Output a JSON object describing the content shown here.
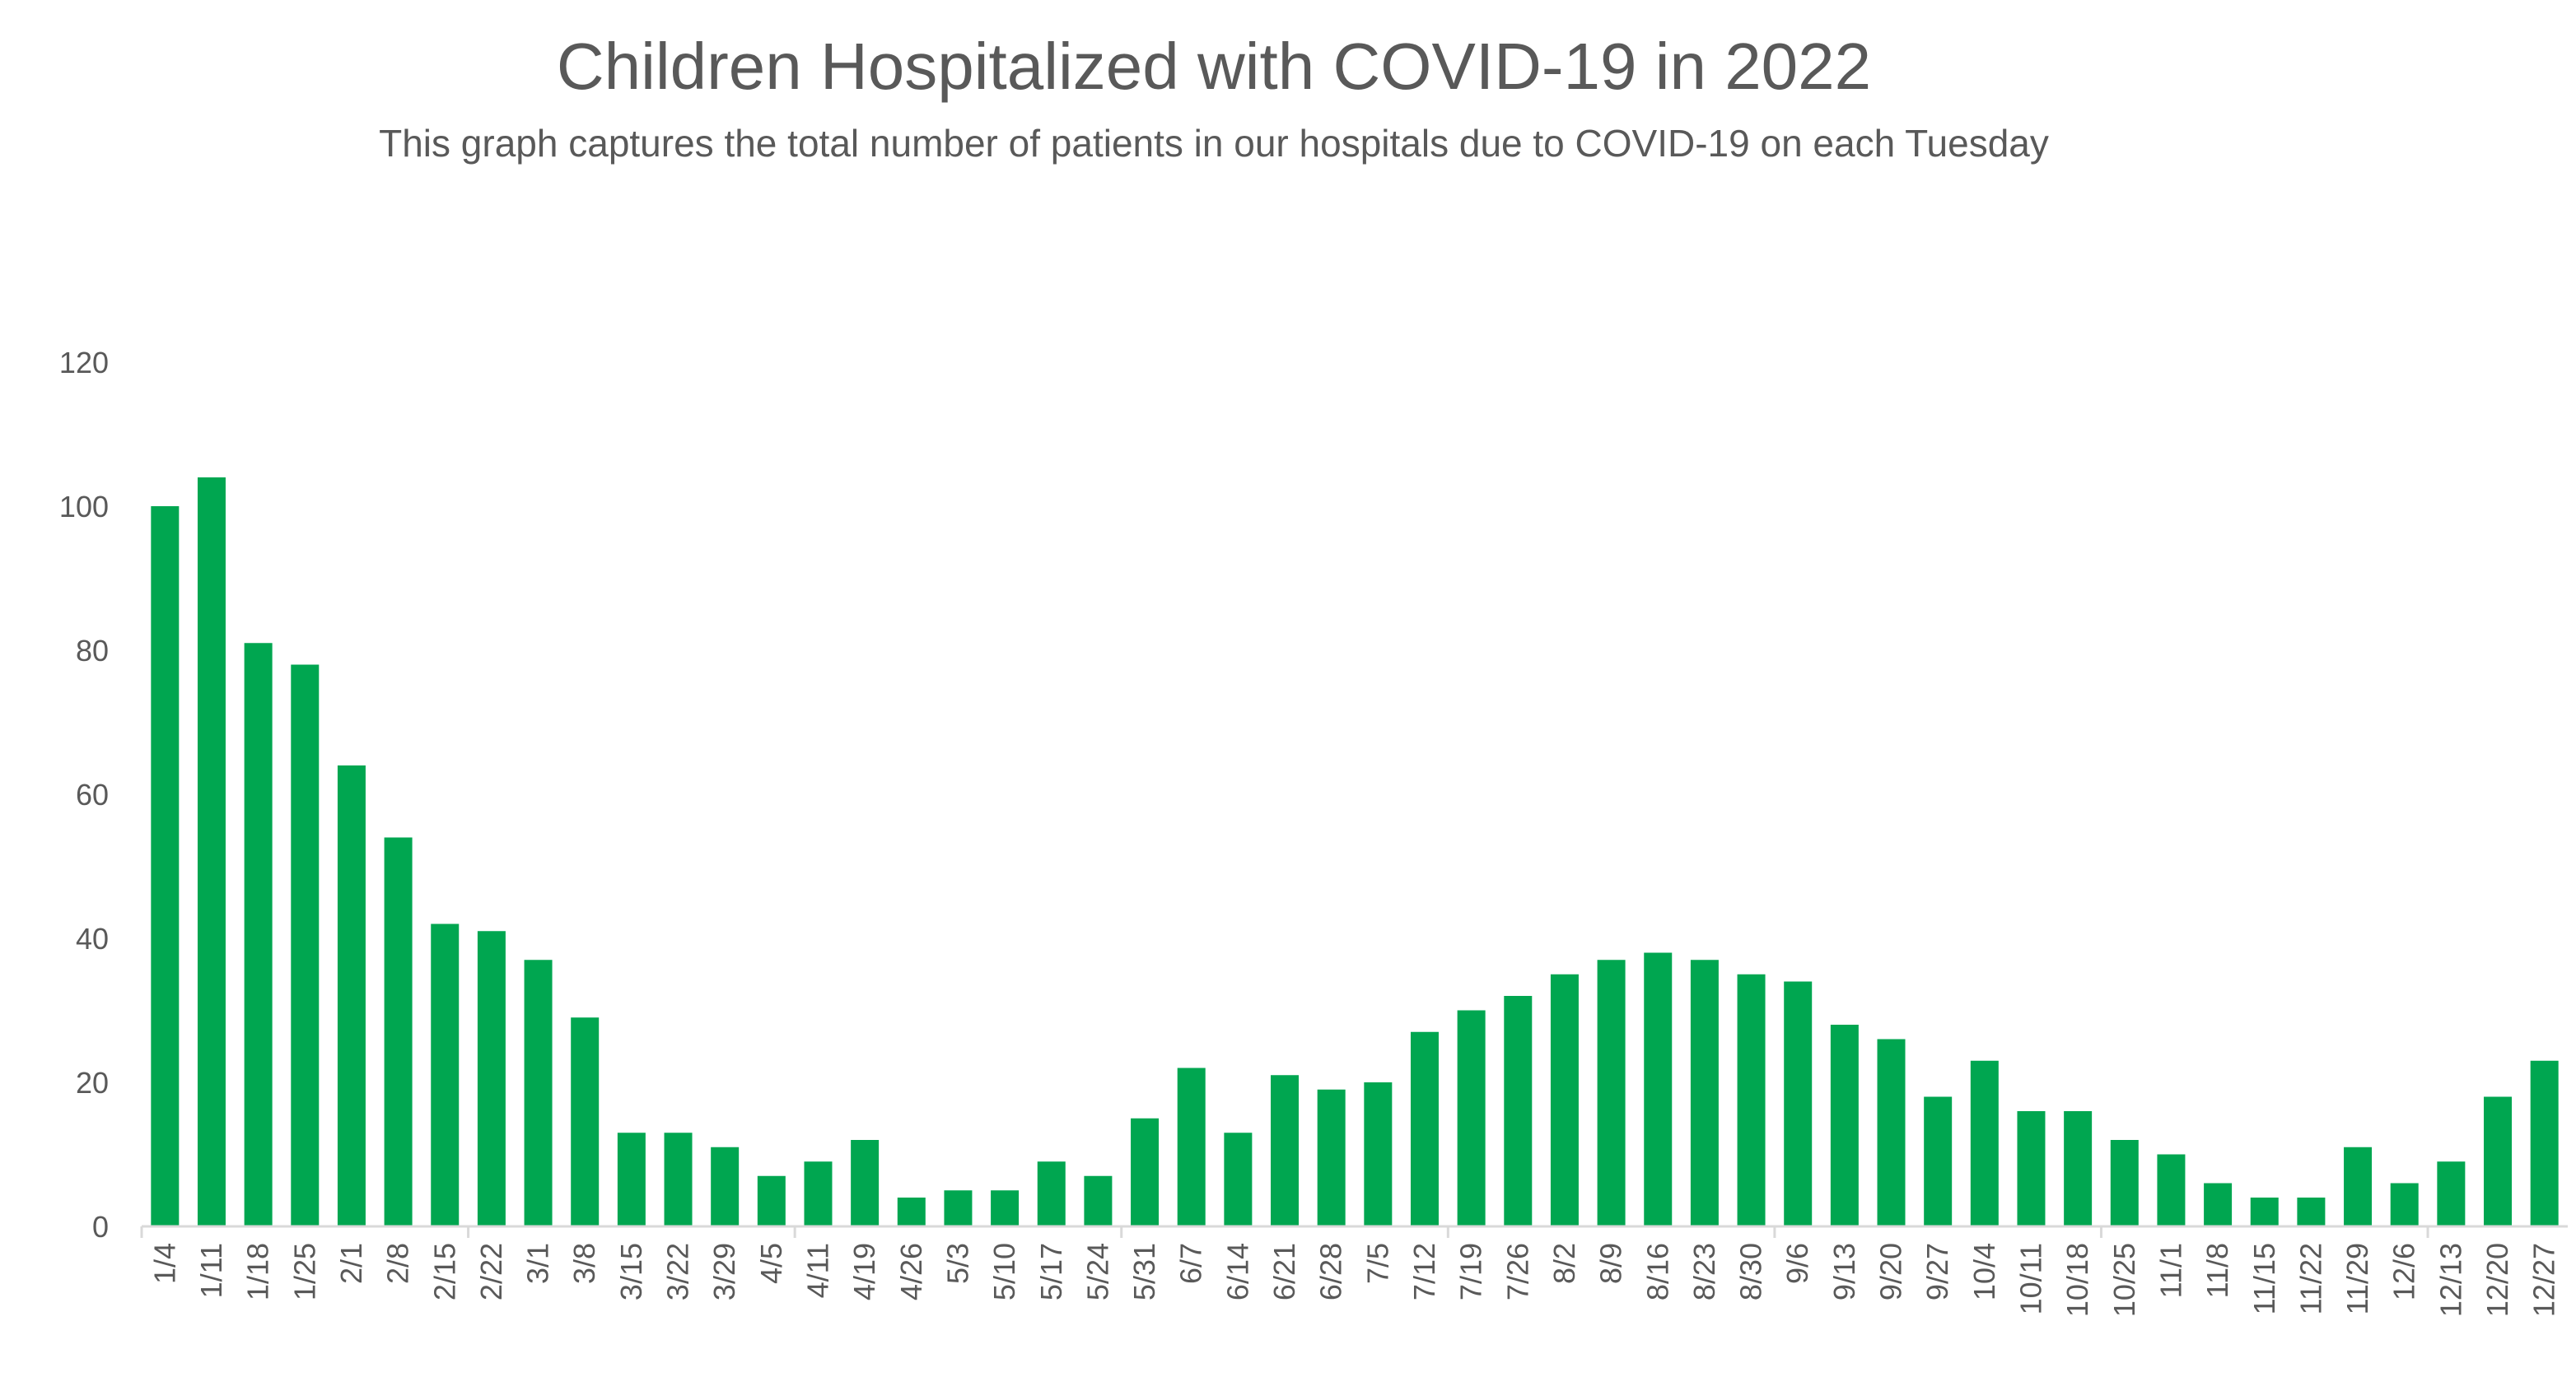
{
  "chart_data": {
    "type": "bar",
    "title": "Children Hospitalized with COVID-19 in 2022",
    "subtitle": "This graph captures the total number of patients in our hospitals due to COVID-19 on each Tuesday",
    "xlabel": "",
    "ylabel": "",
    "ylim": [
      0,
      120
    ],
    "yticks": [
      0,
      20,
      40,
      60,
      80,
      100,
      120
    ],
    "grid": false,
    "legend": "none",
    "bar_color": "#00A650",
    "categories": [
      "1/4",
      "1/11",
      "1/18",
      "1/25",
      "2/1",
      "2/8",
      "2/15",
      "2/22",
      "3/1",
      "3/8",
      "3/15",
      "3/22",
      "3/29",
      "4/5",
      "4/11",
      "4/19",
      "4/26",
      "5/3",
      "5/10",
      "5/17",
      "5/24",
      "5/31",
      "6/7",
      "6/14",
      "6/21",
      "6/28",
      "7/5",
      "7/12",
      "7/19",
      "7/26",
      "8/2",
      "8/9",
      "8/16",
      "8/23",
      "8/30",
      "9/6",
      "9/13",
      "9/20",
      "9/27",
      "10/4",
      "10/11",
      "10/18",
      "10/25",
      "11/1",
      "11/8",
      "11/15",
      "11/22",
      "11/29",
      "12/6",
      "12/13",
      "12/20",
      "12/27"
    ],
    "values": [
      100,
      104,
      81,
      78,
      64,
      54,
      42,
      41,
      37,
      29,
      13,
      13,
      11,
      7,
      9,
      12,
      4,
      5,
      5,
      9,
      7,
      15,
      22,
      13,
      21,
      19,
      20,
      27,
      30,
      32,
      35,
      37,
      38,
      37,
      35,
      34,
      28,
      26,
      18,
      23,
      16,
      16,
      12,
      10,
      6,
      4,
      4,
      11,
      6,
      9,
      18,
      23
    ]
  }
}
